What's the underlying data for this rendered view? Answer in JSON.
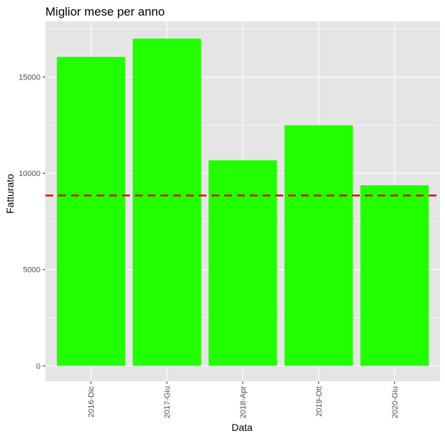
{
  "chart_data": {
    "type": "bar",
    "title": "Miglior mese per anno",
    "xlabel": "Data",
    "ylabel": "Fatturato",
    "categories": [
      "2016-Dic",
      "2017-Giu",
      "2018-Apr",
      "2019-Ott",
      "2020-Giu"
    ],
    "values": [
      16050,
      17000,
      10680,
      12500,
      9380
    ],
    "ylim": [
      -800,
      17900
    ],
    "yticks": [
      0,
      5000,
      10000,
      15000
    ],
    "ytick_labels": [
      "0",
      "5000",
      "10000",
      "15000"
    ],
    "reference_line": {
      "value": 8850,
      "style": "dashed",
      "color": "#ee0000"
    },
    "grid": true,
    "legend": "none",
    "colors": {
      "bar": "#22ff00",
      "panel": "#e5e5e5",
      "grid": "#ffffff"
    }
  }
}
